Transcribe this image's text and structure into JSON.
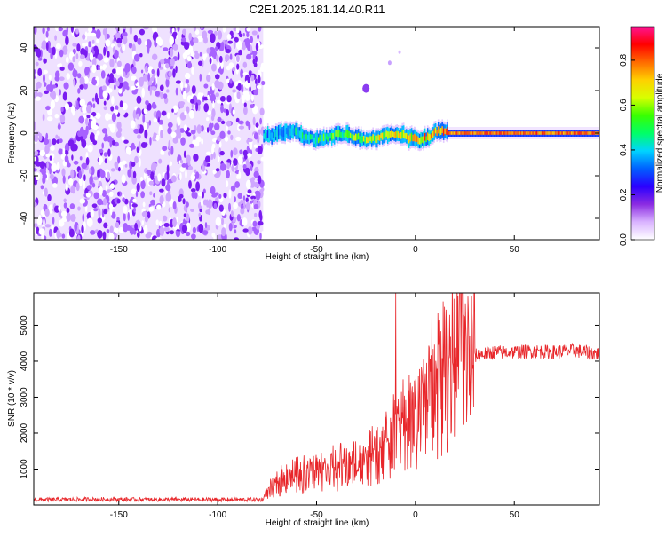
{
  "title": "C2E1.2025.181.14.40.R11",
  "colors": {
    "trace": "#e8262a",
    "axis": "#000000"
  },
  "chart_data": [
    {
      "type": "heatmap",
      "name": "spectrogram",
      "xlabel": "Height of straight line (km)",
      "ylabel": "Frequency (Hz)",
      "xlim": [
        -193,
        93
      ],
      "ylim": [
        -50,
        50
      ],
      "xticks": [
        "-150",
        "-100",
        "-50",
        "0",
        "50"
      ],
      "xtick_values": [
        -150,
        -100,
        -50,
        0,
        50
      ],
      "yticks": [
        "-40",
        "-20",
        "0",
        "20",
        "40"
      ],
      "ytick_values": [
        -40,
        -20,
        0,
        20,
        40
      ],
      "colorbar": {
        "label": "Normalized spectral amplitude",
        "range": [
          0,
          0.95
        ],
        "ticks": [
          "0.0",
          "0.2",
          "0.4",
          "0.6",
          "0.8"
        ],
        "tick_values": [
          0,
          0.2,
          0.4,
          0.6,
          0.8
        ],
        "colormap": [
          "#ffffff",
          "#d9b3ff",
          "#8a2be2",
          "#2a00ff",
          "#0060ff",
          "#00d4ff",
          "#00ff66",
          "#39ff00",
          "#d8ff00",
          "#ffd000",
          "#ff6a00",
          "#ff0000",
          "#ff1493"
        ]
      },
      "regions": [
        {
          "desc": "broadband noise",
          "x_range": [
            -193,
            -77
          ],
          "freq_range": [
            -50,
            50
          ],
          "level": 0.15
        },
        {
          "desc": "signal trace",
          "x_range": [
            -77,
            93
          ],
          "center_freq": 0,
          "level_start": 0.35,
          "level_end": 0.9
        },
        {
          "desc": "faint feature",
          "x_range": [
            -28,
            -20
          ],
          "freq_range": [
            20,
            40
          ],
          "level": 0.2
        }
      ]
    },
    {
      "type": "line",
      "name": "snr",
      "xlabel": "Height of straight line (km)",
      "ylabel": "SNR (10 * v/v)",
      "xlim": [
        -193,
        93
      ],
      "ylim": [
        0,
        5900
      ],
      "xticks": [
        "-150",
        "-100",
        "-50",
        "0",
        "50"
      ],
      "xtick_values": [
        -150,
        -100,
        -50,
        0,
        50
      ],
      "yticks": [
        "1000",
        "2000",
        "3000",
        "4000",
        "5000"
      ],
      "ytick_values": [
        1000,
        2000,
        3000,
        4000,
        5000
      ],
      "series": [
        {
          "x": [
            -193,
            -180,
            -160,
            -140,
            -120,
            -100,
            -85,
            -77,
            -72,
            -65,
            -55,
            -45,
            -35,
            -25,
            -15,
            -10,
            -5,
            0,
            5,
            10,
            15,
            20,
            25,
            30,
            40,
            50,
            60,
            70,
            80,
            93
          ],
          "y": [
            150,
            150,
            160,
            150,
            150,
            150,
            150,
            150,
            500,
            700,
            800,
            900,
            1000,
            1100,
            1500,
            1800,
            2000,
            2300,
            2700,
            3100,
            3500,
            3800,
            4000,
            4150,
            4250,
            4250,
            4280,
            4250,
            4300,
            4200
          ]
        }
      ],
      "annotations": [
        {
          "desc": "spike",
          "x": -10,
          "y": 5900
        }
      ]
    }
  ]
}
